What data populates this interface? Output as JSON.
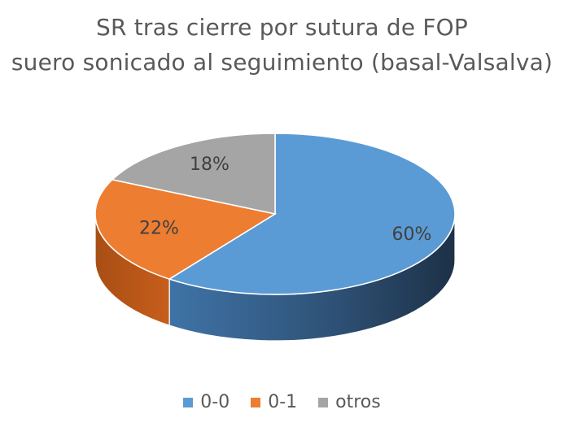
{
  "chart_data": {
    "type": "pie",
    "title_lines": [
      "SR tras cierre por sutura de FOP",
      "suero sonicado al seguimiento (basal-Valsalva)"
    ],
    "categories": [
      "0-0",
      "0-1",
      "otros"
    ],
    "values": [
      60,
      22,
      18
    ],
    "data_labels": [
      "60%",
      "22%",
      "18%"
    ],
    "colors": [
      "#5B9BD5",
      "#ED7D31",
      "#A5A5A5"
    ],
    "legend_position": "bottom",
    "style": "3d-pie"
  }
}
